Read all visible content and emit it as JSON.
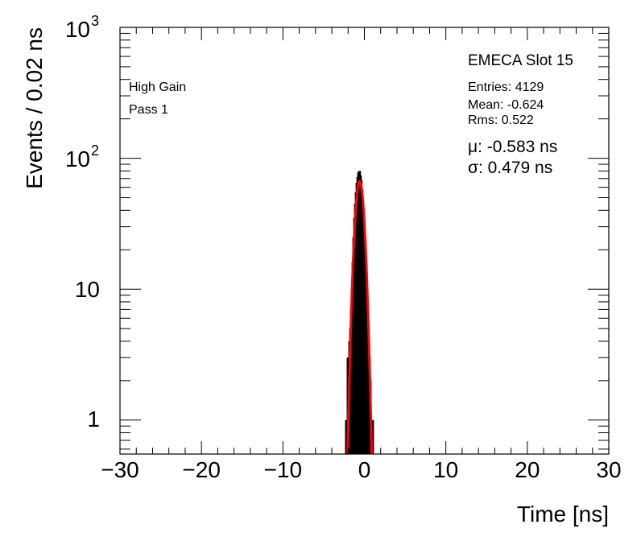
{
  "chart_data": {
    "type": "histogram",
    "title": "EMECA Slot 15",
    "xlabel": "Time [ns]",
    "ylabel": "Events / 0.02 ns",
    "x_range": [
      -30,
      30
    ],
    "y_range": [
      0.55,
      1000
    ],
    "y_scale": "log",
    "x_ticks": [
      -30,
      -20,
      -10,
      0,
      10,
      20,
      30
    ],
    "x_tick_labels": [
      "−30",
      "−20",
      "−10",
      "0",
      "10",
      "20",
      "30"
    ],
    "y_ticks": [
      1,
      10,
      100,
      1000
    ],
    "y_tick_labels": [
      {
        "base": "1",
        "exp": ""
      },
      {
        "base": "10",
        "exp": ""
      },
      {
        "base": "10",
        "exp": "2"
      },
      {
        "base": "10",
        "exp": "3"
      }
    ],
    "annotations": {
      "gain": "High Gain",
      "pass": "Pass 1",
      "entries": "Entries: 4129",
      "mean": "Mean: -0.624",
      "rms": "Rms: 0.522",
      "mu": "μ: -0.583 ns",
      "sigma": "σ: 0.479 ns"
    },
    "histogram": {
      "bin_width": 0.02,
      "x": [
        -2.2,
        -2.1,
        -2.0,
        -1.9,
        -1.8,
        -1.7,
        -1.6,
        -1.5,
        -1.4,
        -1.3,
        -1.2,
        -1.1,
        -1.0,
        -0.9,
        -0.8,
        -0.7,
        -0.6,
        -0.5,
        -0.4,
        -0.3,
        -0.2,
        -0.1,
        0.0,
        0.1,
        0.2,
        0.3,
        0.4,
        0.5,
        0.6,
        0.7,
        0.8,
        0.9,
        1.0
      ],
      "counts": [
        1,
        1,
        3,
        3,
        4,
        5,
        7,
        10,
        16,
        25,
        35,
        45,
        55,
        65,
        72,
        78,
        80,
        74,
        68,
        57,
        45,
        33,
        22,
        14,
        8,
        5,
        4,
        3,
        3,
        2,
        1,
        1,
        1
      ]
    },
    "fit": {
      "function": "gaussian",
      "mean": -0.583,
      "sigma": 0.479,
      "amplitude": 67,
      "color": "#ff0000"
    },
    "colors": {
      "data": "#000000",
      "fit": "#ff0000",
      "frame": "#000000"
    }
  }
}
